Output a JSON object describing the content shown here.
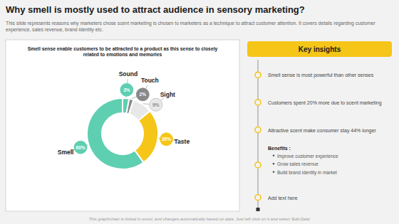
{
  "chart_data": {
    "type": "donut",
    "title": "Why smell is mostly used to attract audience in sensory marketing?",
    "subtitle": "This slide represents reasons why marketers chose scent marketing is chosen to marketers as a technique to attract customer attention. It covers details regarding customer experience, sales revenue, brand identity etc.",
    "categories": [
      "Sound",
      "Touch",
      "Sight",
      "Taste",
      "Smell"
    ],
    "values": [
      3,
      2,
      9,
      26,
      60
    ],
    "value_labels": [
      "3%",
      "2%",
      "9%",
      "26%",
      "60%"
    ],
    "colors": [
      "#5ecfb1",
      "#888888",
      "#e8e8e8",
      "#f5c518",
      "#5ecfb1"
    ],
    "data_labels": true,
    "annotations": [
      {
        "text": "Smell sense enable customers to be attracted to a product as this sense to closely\nrelated to emotions and memories"
      },
      {
        "text": "Key insights"
      },
      {
        "text": "Smell sense is most powerful than other senses"
      },
      {
        "text": "Customers spent 20% more due to scent marketing"
      },
      {
        "text": "Attractive scent make consumer stay 44% longer"
      },
      {
        "text": "Benefits :",
        "items": [
          "Improve customer experience",
          "Grow sales revenue",
          "Build brand identity in market"
        ]
      },
      {
        "text": "Add text here"
      },
      {
        "text": "This graph/chart is linked to excel, and changes automatically based on data. Just left click on it and select 'Edit Data'"
      }
    ]
  }
}
